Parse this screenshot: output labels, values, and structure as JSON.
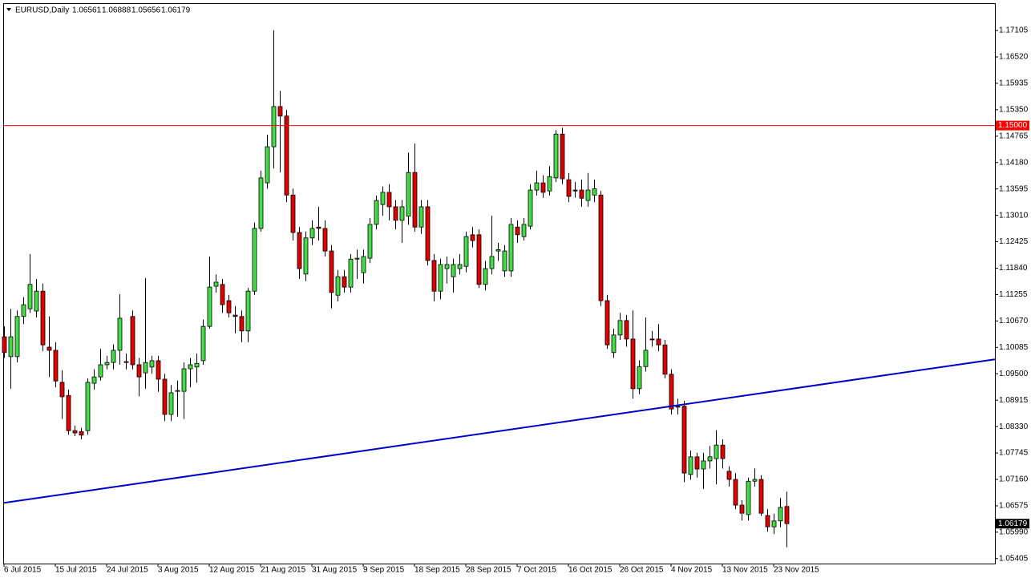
{
  "chart_data": {
    "type": "candlestick",
    "title": "EURUSD,Daily",
    "categories": [
      "6 Jul 2015",
      null,
      null,
      null,
      null,
      null,
      null,
      null,
      "15 Jul 2015",
      null,
      null,
      null,
      null,
      null,
      null,
      null,
      "24 Jul 2015",
      null,
      null,
      null,
      null,
      null,
      null,
      null,
      "3 Aug 2015",
      null,
      null,
      null,
      null,
      null,
      null,
      null,
      "12 Aug 2015",
      null,
      null,
      null,
      null,
      null,
      null,
      null,
      "21 Aug 2015",
      null,
      null,
      null,
      null,
      null,
      null,
      null,
      "31 Aug 2015",
      null,
      null,
      null,
      null,
      null,
      null,
      null,
      "9 Sep 2015",
      null,
      null,
      null,
      null,
      null,
      null,
      null,
      "18 Sep 2015",
      null,
      null,
      null,
      null,
      null,
      null,
      null,
      "28 Sep 2015",
      null,
      null,
      null,
      null,
      null,
      null,
      null,
      "7 Oct 2015",
      null,
      null,
      null,
      null,
      null,
      null,
      null,
      "16 Oct 2015",
      null,
      null,
      null,
      null,
      null,
      null,
      null,
      "26 Oct 2015",
      null,
      null,
      null,
      null,
      null,
      null,
      null,
      "4 Nov 2015",
      null,
      null,
      null,
      null,
      null,
      null,
      null,
      "13 Nov 2015",
      null,
      null,
      null,
      null,
      null,
      null,
      null,
      "23 Nov 2015",
      null,
      null
    ],
    "open": [
      1.1032,
      1.0988,
      1.0988,
      1.1077,
      1.1094,
      1.1089,
      1.1133,
      1.1009,
      1.1002,
      1.0931,
      1.0902,
      1.0824,
      1.0822,
      1.0824,
      1.0929,
      1.0943,
      1.097,
      1.0975,
      1.1002,
      1.0977,
      1.1077,
      1.097,
      1.0952,
      1.0965,
      1.0979,
      1.0938,
      1.086,
      1.0911,
      1.0911,
      1.0961,
      1.0965,
      1.0979,
      1.1055,
      1.1144,
      1.1148,
      1.1112,
      1.108,
      1.1077,
      1.1045,
      1.1133,
      1.1272,
      1.1373,
      1.1453,
      1.1542,
      1.1521,
      1.1346,
      1.1263,
      1.1171,
      1.1251,
      1.1275,
      1.1272,
      1.1222,
      1.1124,
      1.1165,
      1.1142,
      1.1204,
      1.1174,
      1.1206,
      1.1281,
      1.1325,
      1.1352,
      1.132,
      1.129,
      1.1299,
      1.1396,
      1.1275,
      1.132,
      1.1201,
      1.1133,
      1.1183,
      1.1165,
      1.1183,
      1.1188,
      1.1258,
      1.1258,
      1.1148,
      1.1183,
      1.1222,
      1.1178,
      1.1178,
      1.1275,
      1.1254,
      1.1277,
      1.1357,
      1.1373,
      1.1355,
      1.1384,
      1.1481,
      1.138,
      1.1357,
      1.1357,
      1.1334,
      1.1346,
      1.1346,
      1.1112,
      1.0997,
      1.1036,
      1.1068,
      1.1027,
      1.0917,
      1.0966,
      1.1027,
      1.1027,
      1.1014,
      1.0949,
      1.0878,
      1.0878,
      1.0727,
      1.0766,
      1.0739,
      1.0757,
      1.0762,
      1.0792,
      1.0734,
      1.0716,
      1.0659,
      1.0638,
      1.0712,
      1.0716,
      1.0636,
      1.0611,
      1.0624,
      1.06561
    ],
    "high": [
      1.1055,
      1.1094,
      1.109,
      1.112,
      1.1215,
      1.116,
      1.115,
      1.1077,
      1.102,
      1.0958,
      1.0915,
      1.0835,
      1.083,
      1.094,
      1.096,
      1.1005,
      1.099,
      1.1015,
      1.1126,
      1.0995,
      1.109,
      1.0985,
      1.1162,
      1.099,
      1.099,
      1.095,
      1.0925,
      1.0935,
      1.0975,
      1.0985,
      1.0995,
      1.107,
      1.121,
      1.117,
      1.116,
      1.1125,
      1.11,
      1.109,
      1.114,
      1.1285,
      1.14,
      1.148,
      1.1711,
      1.1577,
      1.1535,
      1.136,
      1.1275,
      1.1265,
      1.129,
      1.132,
      1.129,
      1.1235,
      1.118,
      1.118,
      1.1215,
      1.1225,
      1.1225,
      1.1295,
      1.1345,
      1.1365,
      1.137,
      1.1335,
      1.1335,
      1.144,
      1.146,
      1.1335,
      1.1335,
      1.1215,
      1.1205,
      1.121,
      1.1205,
      1.1215,
      1.1265,
      1.1275,
      1.127,
      1.12,
      1.13,
      1.124,
      1.1235,
      1.1295,
      1.129,
      1.1295,
      1.137,
      1.14,
      1.139,
      1.141,
      1.149,
      1.1495,
      1.1395,
      1.1375,
      1.138,
      1.1395,
      1.138,
      1.1355,
      1.1125,
      1.105,
      1.1085,
      1.108,
      1.109,
      1.098,
      1.1075,
      1.1045,
      1.106,
      1.1025,
      1.096,
      1.0895,
      1.089,
      1.078,
      1.0775,
      1.0775,
      1.079,
      1.0825,
      1.0805,
      1.0745,
      1.073,
      1.067,
      1.072,
      1.074,
      1.0725,
      1.065,
      1.064,
      1.0675,
      1.06888
    ],
    "low": [
      1.0985,
      1.0917,
      1.0975,
      1.106,
      1.1085,
      1.1075,
      1.1,
      1.0943,
      1.092,
      1.085,
      1.0815,
      1.0812,
      1.0805,
      1.0815,
      1.0915,
      1.0935,
      1.096,
      1.096,
      1.097,
      1.096,
      1.096,
      1.09,
      1.0917,
      1.095,
      1.091,
      1.0845,
      1.0845,
      1.0855,
      1.085,
      1.092,
      1.093,
      1.097,
      1.105,
      1.113,
      1.1085,
      1.1075,
      1.104,
      1.102,
      1.102,
      1.1125,
      1.1265,
      1.136,
      1.1405,
      1.1396,
      1.133,
      1.1245,
      1.116,
      1.1155,
      1.1235,
      1.1245,
      1.121,
      1.1095,
      1.111,
      1.113,
      1.113,
      1.116,
      1.115,
      1.1195,
      1.127,
      1.13,
      1.129,
      1.127,
      1.124,
      1.128,
      1.1265,
      1.126,
      1.119,
      1.111,
      1.1115,
      1.115,
      1.113,
      1.117,
      1.1175,
      1.123,
      1.114,
      1.1135,
      1.117,
      1.12,
      1.1165,
      1.1165,
      1.124,
      1.1245,
      1.127,
      1.1345,
      1.134,
      1.1345,
      1.1375,
      1.137,
      1.133,
      1.134,
      1.132,
      1.132,
      1.133,
      1.11,
      1.1005,
      1.0985,
      1.1025,
      1.101,
      1.0895,
      1.0905,
      1.0955,
      1.101,
      1.1,
      1.094,
      1.086,
      1.086,
      1.071,
      1.0715,
      1.072,
      1.0695,
      1.074,
      1.0705,
      1.074,
      1.07,
      1.065,
      1.0625,
      1.0625,
      1.07,
      1.0635,
      1.06,
      1.0595,
      1.061,
      1.05656
    ],
    "close": [
      1.0997,
      1.1032,
      1.1077,
      1.1103,
      1.1148,
      1.1133,
      1.1014,
      1.1002,
      1.0934,
      1.0899,
      1.0824,
      1.0819,
      1.0814,
      1.0931,
      1.0943,
      1.097,
      1.0975,
      1.1002,
      1.1073,
      1.0975,
      1.097,
      1.0943,
      1.0975,
      1.0979,
      1.0938,
      1.086,
      1.0908,
      1.0913,
      1.0961,
      1.097,
      1.0973,
      1.1055,
      1.1142,
      1.1153,
      1.1103,
      1.1085,
      1.1077,
      1.1045,
      1.1133,
      1.1272,
      1.1384,
      1.1453,
      1.1542,
      1.1521,
      1.1346,
      1.1263,
      1.1183,
      1.1251,
      1.1272,
      1.1272,
      1.1222,
      1.113,
      1.1165,
      1.1142,
      1.1204,
      1.1206,
      1.121,
      1.1281,
      1.1334,
      1.1352,
      1.132,
      1.129,
      1.132,
      1.1396,
      1.1275,
      1.132,
      1.1201,
      1.1133,
      1.1192,
      1.1192,
      1.1192,
      1.1192,
      1.1254,
      1.1245,
      1.1148,
      1.1183,
      1.121,
      1.1225,
      1.1222,
      1.1281,
      1.1258,
      1.1281,
      1.1357,
      1.1373,
      1.1352,
      1.1387,
      1.1481,
      1.1382,
      1.1343,
      1.1355,
      1.1339,
      1.1357,
      1.136,
      1.1112,
      1.1014,
      1.1036,
      1.1068,
      1.1027,
      1.0917,
      1.0966,
      1.1002,
      1.1025,
      1.1014,
      1.0949,
      1.0872,
      1.0876,
      1.073,
      1.0766,
      1.0739,
      1.0757,
      1.0766,
      1.0792,
      1.0762,
      1.0716,
      1.0659,
      1.0641,
      1.0712,
      1.0716,
      1.0641,
      1.0611,
      1.0624,
      1.0654,
      1.06179
    ],
    "up_color": "#44dd44",
    "down_color": "#dd0000",
    "ylim": [
      1.05295,
      1.1771
    ],
    "yticks": [
      1.17105,
      {
        "value": 1.1652,
        "label": "1.16520"
      },
      1.15935,
      {
        "value": 1.1535,
        "label": "1.15350"
      },
      1.14765,
      {
        "value": 1.1418,
        "label": "1.14180"
      },
      1.13595,
      {
        "value": 1.1301,
        "label": "1.13010"
      },
      1.12425,
      {
        "value": 1.1184,
        "label": "1.11840"
      },
      1.11255,
      {
        "value": 1.1067,
        "label": "1.10670"
      },
      1.10085,
      {
        "value": 1.095,
        "label": "1.09500"
      },
      1.08915,
      {
        "value": 1.0833,
        "label": "1.08330"
      },
      1.07745,
      {
        "value": 1.0716,
        "label": "1.07160"
      },
      1.06575,
      {
        "value": 1.0599,
        "label": "1.05990"
      },
      1.05405
    ],
    "hline": {
      "value": 1.15,
      "label": "1.15000",
      "color": "#ff0000"
    },
    "trendline": {
      "values": [
        1.0664,
        1.0982
      ],
      "color": "#0000cc"
    }
  }
}
